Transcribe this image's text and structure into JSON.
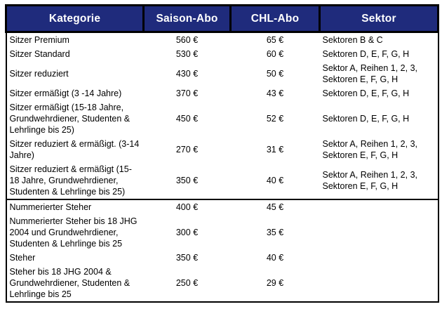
{
  "accent_color": "#1F2B7C",
  "border_color": "#000000",
  "table": {
    "columns": [
      {
        "key": "kategorie",
        "label": "Kategorie"
      },
      {
        "key": "saison",
        "label": "Saison-Abo"
      },
      {
        "key": "chl",
        "label": "CHL-Abo"
      },
      {
        "key": "sektor",
        "label": "Sektor"
      }
    ],
    "rows": [
      {
        "group": "sitzer",
        "kategorie": "Sitzer Premium",
        "saison": "560 €",
        "chl": "65 €",
        "sektor": "Sektoren B & C"
      },
      {
        "group": "sitzer",
        "kategorie": "Sitzer Standard",
        "saison": "530 €",
        "chl": "60 €",
        "sektor": "Sektoren D, E, F, G, H"
      },
      {
        "group": "sitzer",
        "kategorie": "Sitzer reduziert",
        "saison": "430 €",
        "chl": "50 €",
        "sektor": "Sektor A, Reihen 1, 2, 3, Sektoren E, F, G, H"
      },
      {
        "group": "sitzer",
        "kategorie": "Sitzer ermäßigt (3 -14 Jahre)",
        "saison": "370 €",
        "chl": "43 €",
        "sektor": "Sektoren D, E, F, G, H"
      },
      {
        "group": "sitzer",
        "kategorie": "Sitzer ermäßigt (15-18 Jahre, Grundwehrdiener, Studenten & Lehrlinge bis 25)",
        "saison": "450 €",
        "chl": "52 €",
        "sektor": "Sektoren D, E, F, G, H"
      },
      {
        "group": "sitzer",
        "kategorie": "Sitzer reduziert & ermäßigt. (3-14 Jahre)",
        "saison": "270 €",
        "chl": "31 €",
        "sektor": "Sektor A, Reihen 1, 2, 3, Sektoren E, F, G, H"
      },
      {
        "group": "sitzer",
        "kategorie": "Sitzer reduziert & ermäßigt (15-18 Jahre, Grundwehrdiener, Studenten & Lehrlinge bis 25)",
        "saison": "350 €",
        "chl": "40 €",
        "sektor": "Sektor A, Reihen 1, 2, 3, Sektoren E, F, G, H"
      },
      {
        "group": "steher",
        "kategorie": "Nummerierter Steher",
        "saison": "400 €",
        "chl": "45 €",
        "sektor": ""
      },
      {
        "group": "steher",
        "kategorie": "Nummerierter Steher bis 18 JHG 2004 und Grundwehrdiener, Studenten & Lehrlinge bis 25",
        "saison": "300 €",
        "chl": "35 €",
        "sektor": ""
      },
      {
        "group": "steher",
        "kategorie": "Steher",
        "saison": "350 €",
        "chl": "40 €",
        "sektor": ""
      },
      {
        "group": "steher",
        "kategorie": "Steher bis 18 JHG 2004 & Grundwehrdiener, Studenten & Lehrlinge bis 25",
        "saison": "250 €",
        "chl": "29 €",
        "sektor": ""
      }
    ]
  }
}
